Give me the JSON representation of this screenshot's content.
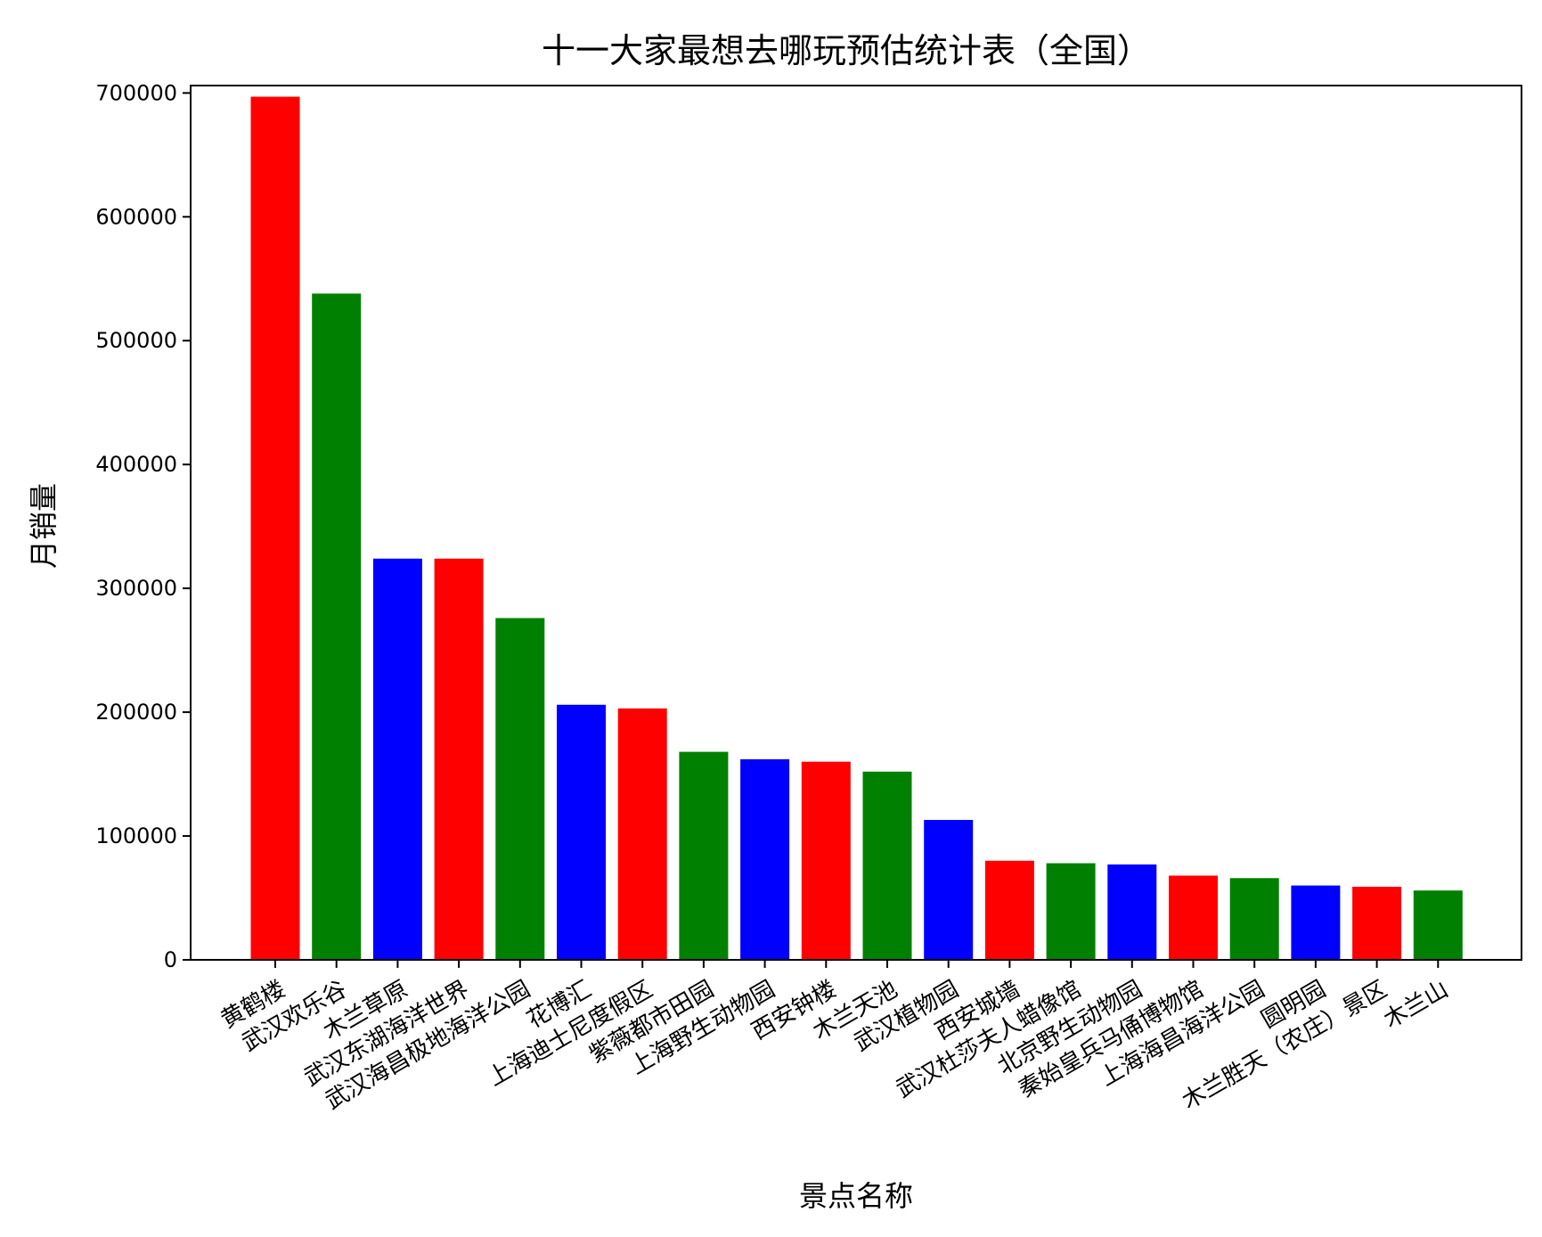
{
  "chart_data": {
    "type": "bar",
    "title": "十一大家最想去哪玩预估统计表（全国）",
    "xlabel": "景点名称",
    "ylabel": "月销量",
    "ylim": [
      0,
      706000
    ],
    "yticks": [
      0,
      100000,
      200000,
      300000,
      400000,
      500000,
      600000,
      700000
    ],
    "ytick_labels": [
      "0",
      "100000",
      "200000",
      "300000",
      "400000",
      "500000",
      "600000",
      "700000"
    ],
    "grid": false,
    "legend": "none",
    "bar_color_cycle": [
      "#ff0000",
      "#008000",
      "#0000ff"
    ],
    "categories": [
      "黄鹤楼",
      "武汉欢乐谷",
      "木兰草原",
      "武汉东湖海洋世界",
      "武汉海昌极地海洋公园",
      "花博汇",
      "上海迪士尼度假区",
      "紫薇都市田园",
      "上海野生动物园",
      "西安钟楼",
      "木兰天池",
      "武汉植物园",
      "西安城墙",
      "武汉杜莎夫人蜡像馆",
      "北京野生动物园",
      "秦始皇兵马俑博物馆",
      "上海海昌海洋公园",
      "圆明园",
      "木兰胜天（农庄）景区",
      "木兰山"
    ],
    "values": [
      697000,
      538000,
      324000,
      324000,
      276000,
      206000,
      203000,
      168000,
      162000,
      160000,
      152000,
      113000,
      80000,
      78000,
      77000,
      68000,
      66000,
      60000,
      59000,
      56000
    ]
  }
}
